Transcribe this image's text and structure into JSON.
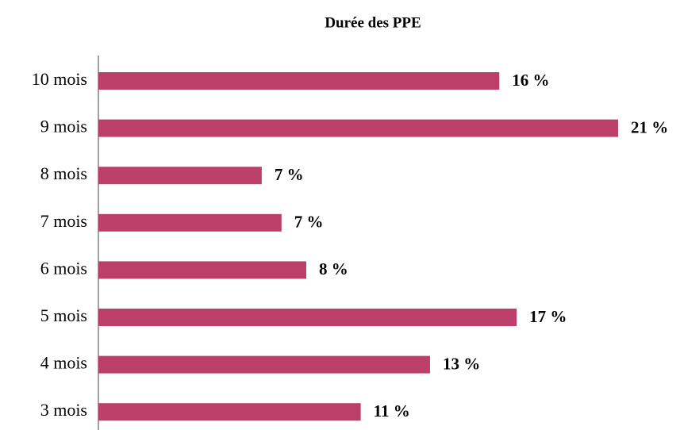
{
  "chart_data": {
    "type": "bar",
    "orientation": "horizontal",
    "title": "Durée des PPE",
    "categories": [
      "10 mois",
      "9 mois",
      "8 mois",
      "7 mois",
      "6 mois",
      "5 mois",
      "4 mois",
      "3 mois"
    ],
    "values": [
      16.2,
      21,
      6.6,
      7.4,
      8.4,
      16.9,
      13.4,
      10.6
    ],
    "value_labels": [
      "16 %",
      "21 %",
      "7 %",
      "7 %",
      "8 %",
      "17 %",
      "13 %",
      "11 %"
    ],
    "color": "#bb3f68"
  }
}
